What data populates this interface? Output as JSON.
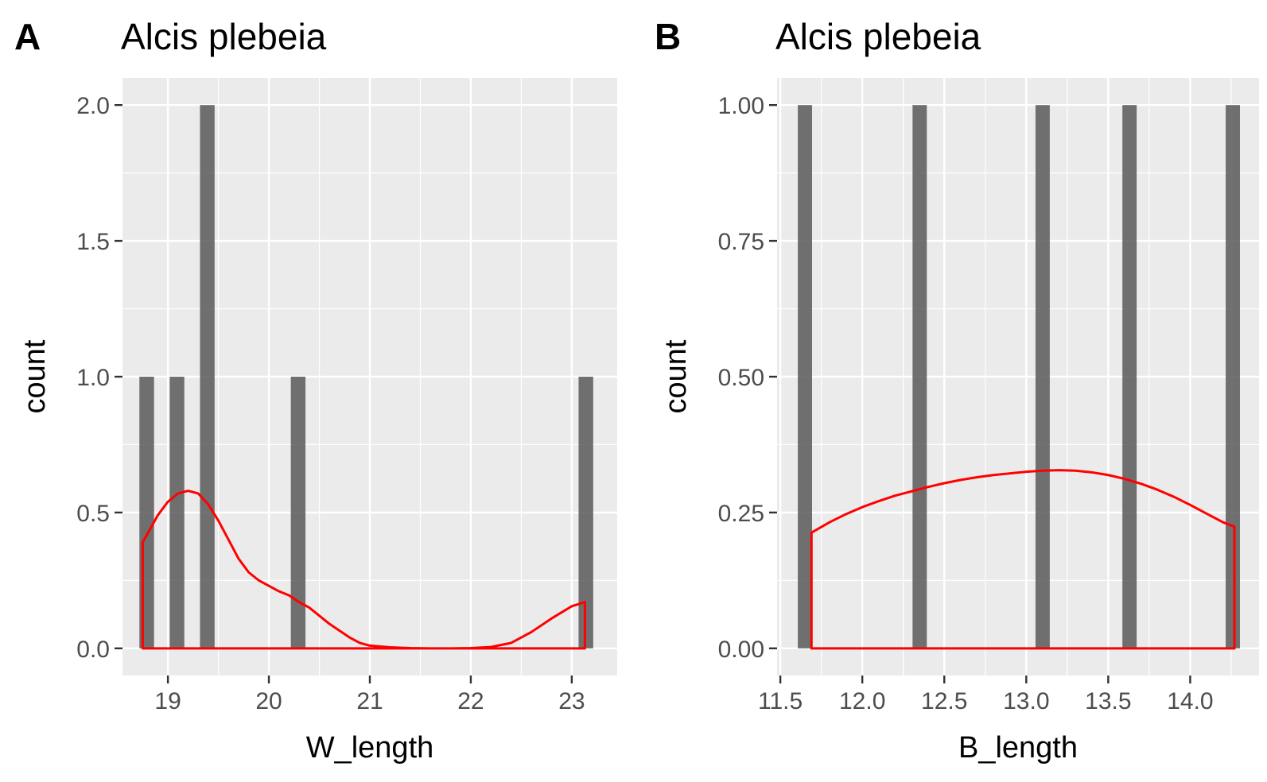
{
  "chart_data": [
    {
      "type": "bar",
      "panel_label": "A",
      "title": "Alcis plebeia",
      "xlabel": "W_length",
      "ylabel": "count",
      "xlim": [
        18.55,
        23.45
      ],
      "ylim": [
        -0.1,
        2.1
      ],
      "x_major_ticks": [
        19,
        20,
        21,
        22,
        23
      ],
      "x_tick_labels": [
        "19",
        "20",
        "21",
        "22",
        "23"
      ],
      "y_major_ticks": [
        0,
        0.5,
        1,
        1.5,
        2
      ],
      "y_tick_labels": [
        "0.0",
        "0.5",
        "1.0",
        "1.5",
        "2.0"
      ],
      "bar_width": 0.145,
      "bars": [
        {
          "x": 18.79,
          "count": 1
        },
        {
          "x": 19.09,
          "count": 1
        },
        {
          "x": 19.39,
          "count": 2
        },
        {
          "x": 20.29,
          "count": 1
        },
        {
          "x": 23.14,
          "count": 1
        }
      ],
      "density_outline": {
        "color": "#ff0000",
        "x": [
          18.75,
          18.9,
          19.0,
          19.1,
          19.2,
          19.3,
          19.4,
          19.5,
          19.6,
          19.7,
          19.8,
          19.9,
          20.0,
          20.1,
          20.2,
          20.3,
          20.4,
          20.5,
          20.6,
          20.7,
          20.8,
          20.9,
          21.0,
          21.2,
          21.4,
          21.6,
          21.8,
          22.0,
          22.2,
          22.4,
          22.6,
          22.8,
          23.0,
          23.13
        ],
        "y": [
          0.39,
          0.49,
          0.54,
          0.57,
          0.58,
          0.57,
          0.53,
          0.47,
          0.4,
          0.33,
          0.28,
          0.25,
          0.23,
          0.21,
          0.195,
          0.17,
          0.15,
          0.12,
          0.09,
          0.065,
          0.04,
          0.02,
          0.01,
          0.004,
          0.001,
          0.0,
          0.0,
          0.001,
          0.005,
          0.02,
          0.06,
          0.11,
          0.155,
          0.17
        ]
      },
      "grid": true
    },
    {
      "type": "bar",
      "panel_label": "B",
      "title": "Alcis plebeia",
      "xlabel": "B_length",
      "ylabel": "count",
      "xlim": [
        11.48,
        14.42
      ],
      "ylim": [
        -0.05,
        1.05
      ],
      "x_major_ticks": [
        11.5,
        12.0,
        12.5,
        13.0,
        13.5,
        14.0
      ],
      "x_tick_labels": [
        "11.5",
        "12.0",
        "12.5",
        "13.0",
        "13.5",
        "14.0"
      ],
      "y_major_ticks": [
        0,
        0.25,
        0.5,
        0.75,
        1.0
      ],
      "y_tick_labels": [
        "0.00",
        "0.25",
        "0.50",
        "0.75",
        "1.00"
      ],
      "bar_width": 0.087,
      "bars": [
        {
          "x": 11.65,
          "count": 1
        },
        {
          "x": 12.35,
          "count": 1
        },
        {
          "x": 13.1,
          "count": 1
        },
        {
          "x": 13.63,
          "count": 1
        },
        {
          "x": 14.26,
          "count": 1
        }
      ],
      "density_outline": {
        "color": "#ff0000",
        "x": [
          11.69,
          11.8,
          11.9,
          12.0,
          12.1,
          12.2,
          12.3,
          12.4,
          12.5,
          12.6,
          12.7,
          12.8,
          12.9,
          13.0,
          13.1,
          13.2,
          13.3,
          13.4,
          13.5,
          13.6,
          13.7,
          13.8,
          13.9,
          14.0,
          14.1,
          14.2,
          14.27
        ],
        "y": [
          0.213,
          0.232,
          0.247,
          0.26,
          0.271,
          0.281,
          0.289,
          0.297,
          0.304,
          0.31,
          0.315,
          0.319,
          0.322,
          0.325,
          0.327,
          0.328,
          0.327,
          0.324,
          0.319,
          0.312,
          0.303,
          0.292,
          0.279,
          0.264,
          0.248,
          0.232,
          0.224
        ]
      },
      "grid": true
    }
  ]
}
